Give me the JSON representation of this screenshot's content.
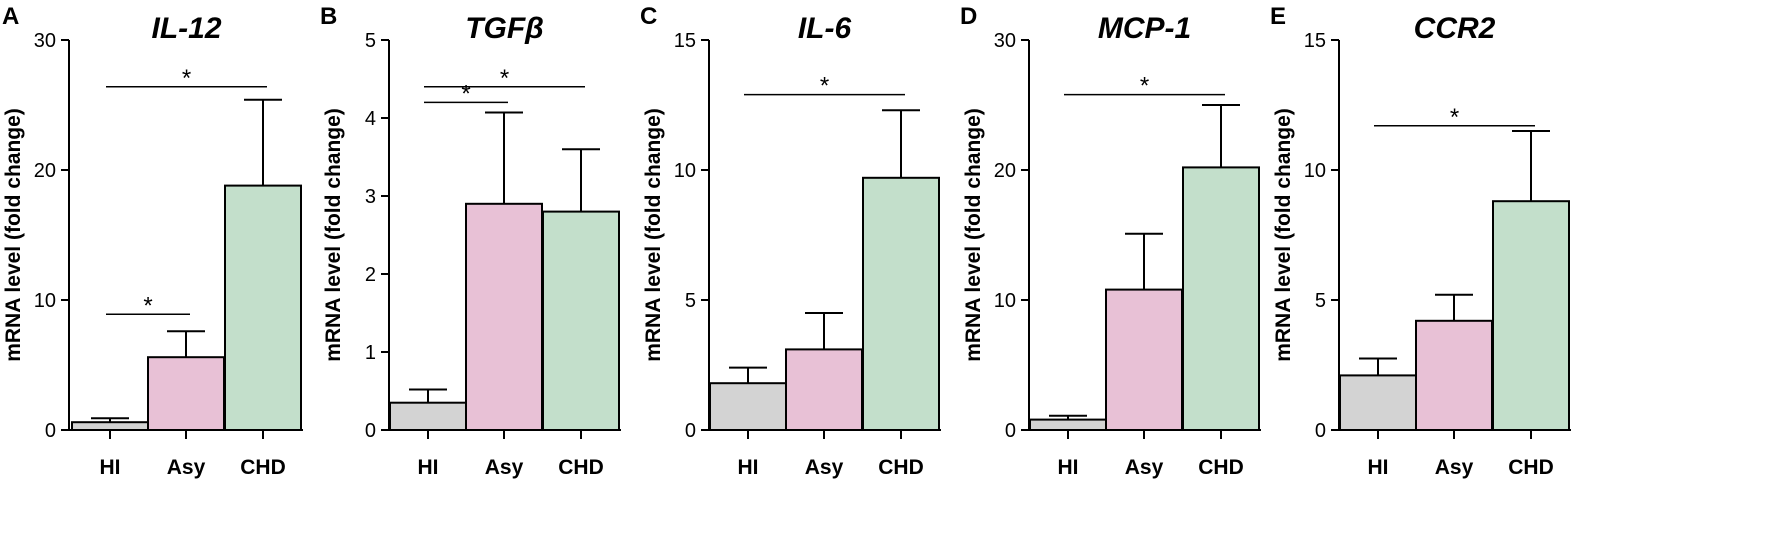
{
  "chart_data": [
    {
      "type": "bar",
      "panel": "A",
      "title": "IL-12",
      "xlabel": "",
      "ylabel": "mRNA level (fold change)",
      "categories": [
        "HI",
        "Asy",
        "CHD"
      ],
      "values": [
        0.6,
        5.6,
        18.8
      ],
      "errors": [
        0.3,
        2.0,
        6.6
      ],
      "ylim": [
        0,
        30
      ],
      "yticks": [
        0,
        10,
        20,
        30
      ],
      "colors": [
        "#d3d3d3",
        "#e8c1d6",
        "#c3dfcb"
      ],
      "significance": [
        {
          "from": "HI",
          "to": "Asy",
          "level": 8.9,
          "label": "*"
        },
        {
          "from": "HI",
          "to": "CHD",
          "level": 26.4,
          "label": "*"
        }
      ]
    },
    {
      "type": "bar",
      "panel": "B",
      "title": "TGFβ",
      "xlabel": "",
      "ylabel": "mRNA level (fold change)",
      "categories": [
        "HI",
        "Asy",
        "CHD"
      ],
      "values": [
        0.35,
        2.9,
        2.8
      ],
      "errors": [
        0.17,
        1.17,
        0.8
      ],
      "ylim": [
        0,
        5
      ],
      "yticks": [
        0,
        1,
        2,
        3,
        4,
        5
      ],
      "colors": [
        "#d3d3d3",
        "#e8c1d6",
        "#c3dfcb"
      ],
      "significance": [
        {
          "from": "HI",
          "to": "Asy",
          "level": 4.2,
          "label": "*"
        },
        {
          "from": "HI",
          "to": "CHD",
          "level": 4.4,
          "label": "*"
        }
      ]
    },
    {
      "type": "bar",
      "panel": "C",
      "title": "IL-6",
      "xlabel": "",
      "ylabel": "mRNA level (fold change)",
      "categories": [
        "HI",
        "Asy",
        "CHD"
      ],
      "values": [
        1.8,
        3.1,
        9.7
      ],
      "errors": [
        0.6,
        1.4,
        2.6
      ],
      "ylim": [
        0,
        15
      ],
      "yticks": [
        0,
        5,
        10,
        15
      ],
      "colors": [
        "#d3d3d3",
        "#e8c1d6",
        "#c3dfcb"
      ],
      "significance": [
        {
          "from": "HI",
          "to": "CHD",
          "level": 12.9,
          "label": "*"
        }
      ]
    },
    {
      "type": "bar",
      "panel": "D",
      "title": "MCP-1",
      "xlabel": "",
      "ylabel": "mRNA level (fold change)",
      "categories": [
        "HI",
        "Asy",
        "CHD"
      ],
      "values": [
        0.8,
        10.8,
        20.2
      ],
      "errors": [
        0.3,
        4.3,
        4.8
      ],
      "ylim": [
        0,
        30
      ],
      "yticks": [
        0,
        10,
        20,
        30
      ],
      "colors": [
        "#d3d3d3",
        "#e8c1d6",
        "#c3dfcb"
      ],
      "significance": [
        {
          "from": "HI",
          "to": "CHD",
          "level": 25.8,
          "label": "*"
        }
      ]
    },
    {
      "type": "bar",
      "panel": "E",
      "title": "CCR2",
      "xlabel": "",
      "ylabel": "mRNA level (fold change)",
      "categories": [
        "HI",
        "Asy",
        "CHD"
      ],
      "values": [
        2.1,
        4.2,
        8.8
      ],
      "errors": [
        0.65,
        1.0,
        2.7
      ],
      "ylim": [
        0,
        15
      ],
      "yticks": [
        0,
        5,
        10,
        15
      ],
      "colors": [
        "#d3d3d3",
        "#e8c1d6",
        "#c3dfcb"
      ],
      "significance": [
        {
          "from": "HI",
          "to": "CHD",
          "level": 11.7,
          "label": "*"
        }
      ]
    }
  ]
}
